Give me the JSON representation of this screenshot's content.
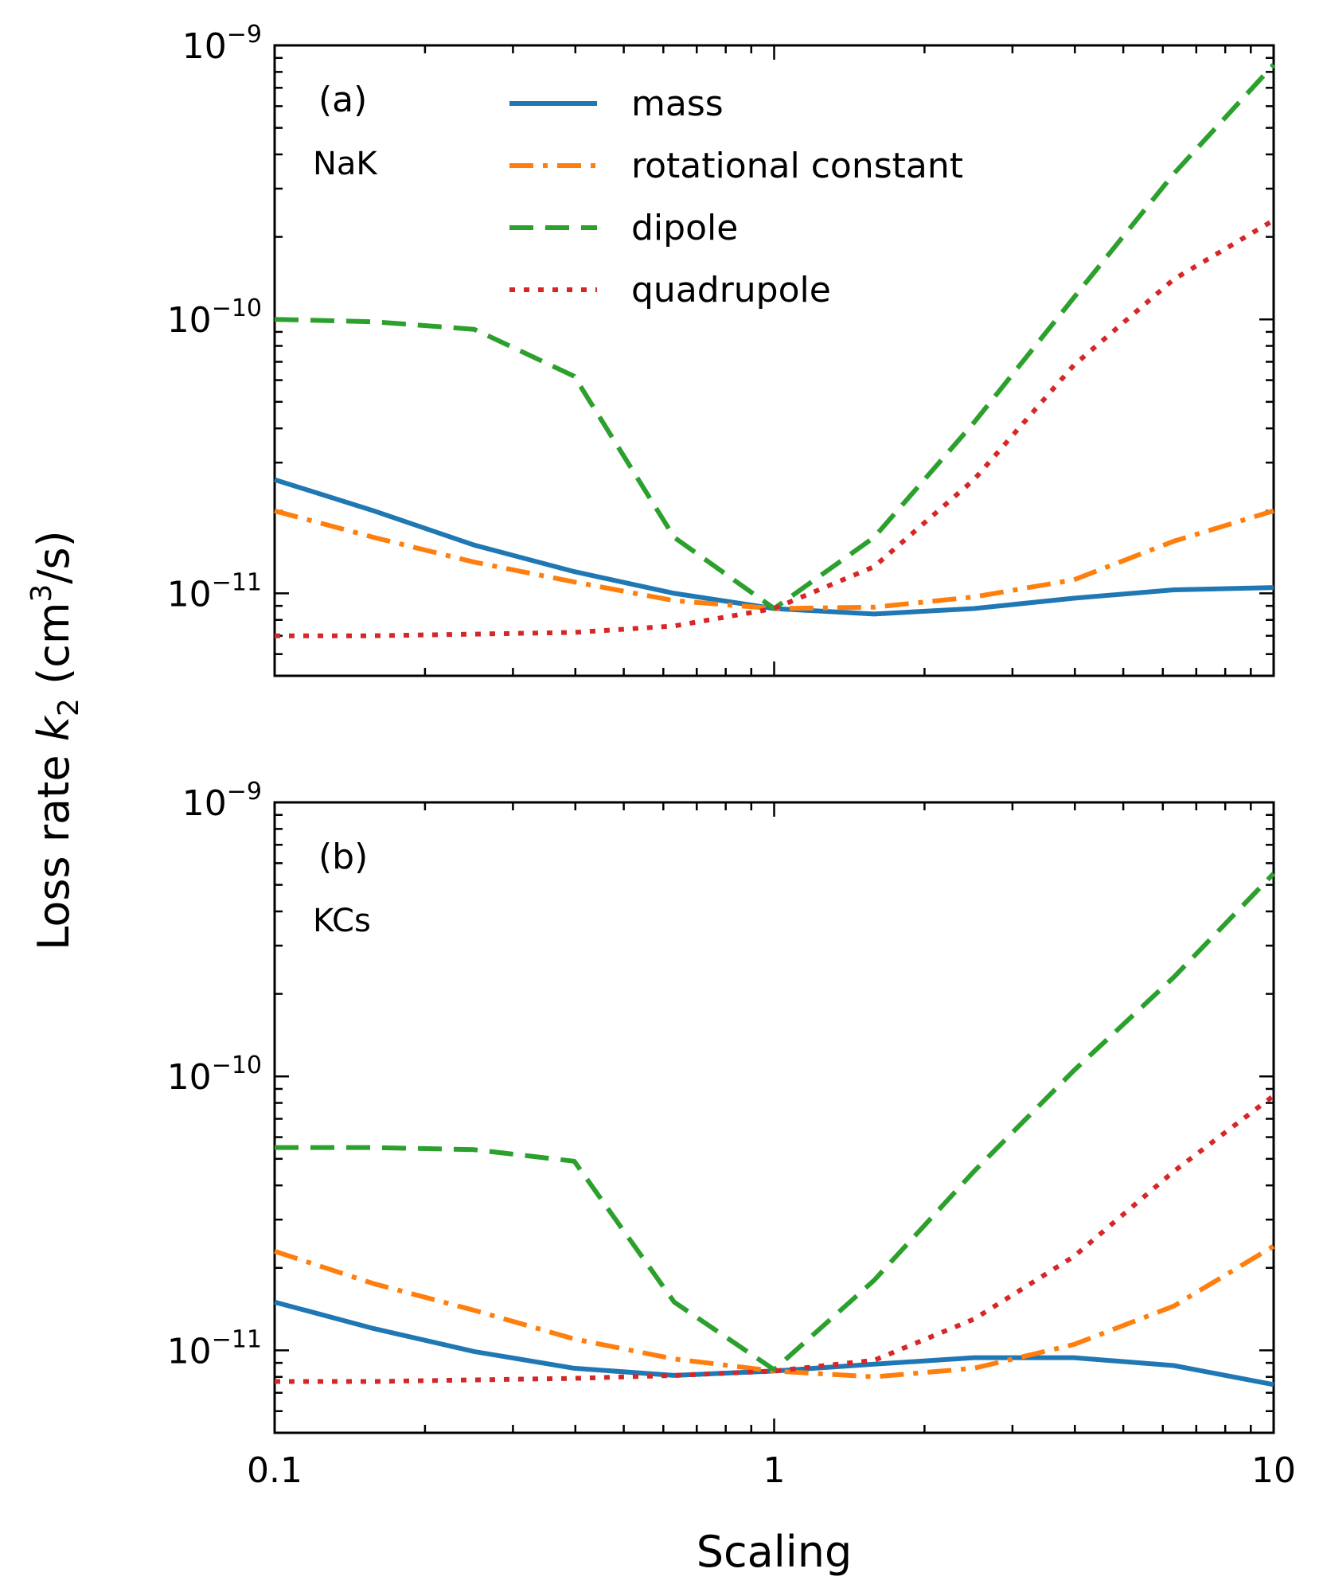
{
  "chart_data": {
    "type": "line",
    "xscale": "log",
    "yscale": "log",
    "xlabel": "Scaling",
    "ylabel_parts": {
      "prefix": "Loss rate ",
      "var": "k",
      "sub": "2",
      "unit_open": " (cm",
      "unit_sup": "3",
      "unit_close": "/s)"
    },
    "xlim": [
      0.1,
      10
    ],
    "ylim": [
      5e-12,
      1e-09
    ],
    "x_ticks": [
      {
        "value": 0.1,
        "label": "0.1"
      },
      {
        "value": 1,
        "label": "1"
      },
      {
        "value": 10,
        "label": "10"
      }
    ],
    "y_ticks": [
      {
        "value": 1e-09,
        "base": "10",
        "exp": "−9"
      },
      {
        "value": 1e-10,
        "base": "10",
        "exp": "−10"
      },
      {
        "value": 1e-11,
        "base": "10",
        "exp": "−11"
      }
    ],
    "legend": {
      "placement": "top-center",
      "entries": [
        {
          "series": "mass",
          "label": "mass"
        },
        {
          "series": "rotational",
          "label": "rotational constant"
        },
        {
          "series": "dipole",
          "label": "dipole"
        },
        {
          "series": "quadrupole",
          "label": "quadrupole"
        }
      ]
    },
    "styles": {
      "mass": {
        "color": "#1f77b4",
        "dash": "solid"
      },
      "rotational": {
        "color": "#ff7f0e",
        "dash": "dashdot"
      },
      "dipole": {
        "color": "#2ca02c",
        "dash": "dashed"
      },
      "quadrupole": {
        "color": "#d62728",
        "dash": "dotted"
      }
    },
    "panels": [
      {
        "tag": "(a)",
        "molecule": "NaK",
        "x": [
          0.1,
          0.158,
          0.251,
          0.398,
          0.631,
          1,
          1.585,
          2.512,
          3.981,
          6.31,
          10
        ],
        "series": [
          {
            "name": "mass",
            "values": [
              2.6e-11,
              2e-11,
              1.5e-11,
              1.2e-11,
              1e-11,
              8.8e-12,
              8.4e-12,
              8.8e-12,
              9.6e-12,
              1.03e-11,
              1.05e-11
            ]
          },
          {
            "name": "rotational",
            "values": [
              2e-11,
              1.6e-11,
              1.3e-11,
              1.1e-11,
              9.4e-12,
              8.8e-12,
              8.9e-12,
              9.7e-12,
              1.12e-11,
              1.55e-11,
              2e-11
            ]
          },
          {
            "name": "dipole",
            "values": [
              1e-10,
              9.8e-11,
              9.2e-11,
              6.2e-11,
              1.6e-11,
              8.8e-12,
              1.6e-11,
              4.2e-11,
              1.2e-10,
              3.4e-10,
              8.5e-10
            ]
          },
          {
            "name": "quadrupole",
            "values": [
              7e-12,
              7e-12,
              7.1e-12,
              7.2e-12,
              7.6e-12,
              8.8e-12,
              1.25e-11,
              2.6e-11,
              6.8e-11,
              1.4e-10,
              2.3e-10
            ]
          }
        ]
      },
      {
        "tag": "(b)",
        "molecule": "KCs",
        "x": [
          0.1,
          0.158,
          0.251,
          0.398,
          0.631,
          1,
          1.585,
          2.512,
          3.981,
          6.31,
          10
        ],
        "series": [
          {
            "name": "mass",
            "values": [
              1.5e-11,
              1.2e-11,
              9.9e-12,
              8.6e-12,
              8.1e-12,
              8.4e-12,
              8.9e-12,
              9.4e-12,
              9.4e-12,
              8.8e-12,
              7.5e-12
            ]
          },
          {
            "name": "rotational",
            "values": [
              2.3e-11,
              1.75e-11,
              1.4e-11,
              1.1e-11,
              9.3e-12,
              8.4e-12,
              8e-12,
              8.6e-12,
              1.05e-11,
              1.45e-11,
              2.4e-11
            ]
          },
          {
            "name": "dipole",
            "values": [
              5.5e-11,
              5.5e-11,
              5.4e-11,
              4.9e-11,
              1.5e-11,
              8.5e-12,
              1.8e-11,
              4.5e-11,
              1.05e-10,
              2.3e-10,
              5.5e-10
            ]
          },
          {
            "name": "quadrupole",
            "values": [
              7.7e-12,
              7.7e-12,
              7.8e-12,
              7.9e-12,
              8.1e-12,
              8.4e-12,
              9.2e-12,
              1.3e-11,
              2.2e-11,
              4.5e-11,
              8.5e-11
            ]
          }
        ]
      }
    ]
  }
}
